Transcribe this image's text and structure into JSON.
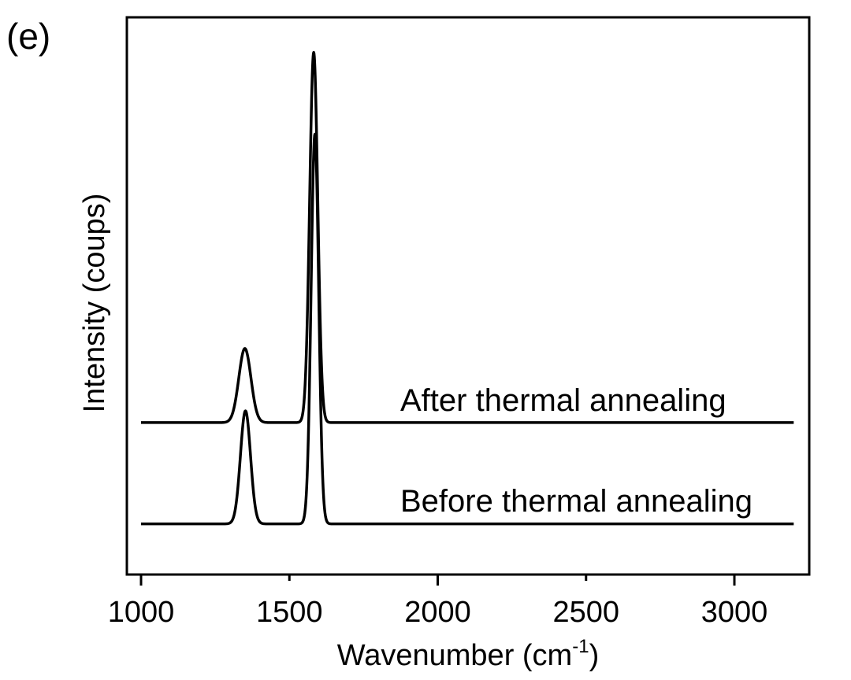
{
  "chart_data": {
    "type": "line",
    "panel_label": "(e)",
    "xlabel": "Wavenumber (cm",
    "xlabel_sup": "-1",
    "xlabel_close": ")",
    "ylabel": "Intensity (coups)",
    "xlim": [
      950,
      3250
    ],
    "ylim": [
      -0.13,
      1.3
    ],
    "xticks": [
      1000,
      1500,
      2000,
      2500,
      3000
    ],
    "xtick_labels": [
      "1000",
      "1500",
      "2000",
      "2500",
      "3000"
    ],
    "yticks": [],
    "grid": false,
    "legend": "none",
    "line_color": "#000000",
    "series": [
      {
        "name": "After thermal annealing",
        "offset": 0.26,
        "x_range": [
          1000,
          3200
        ],
        "peaks": [
          {
            "center": 1350,
            "height": 0.19,
            "fwhm": 48
          },
          {
            "center": 1582,
            "height": 0.95,
            "fwhm": 32
          }
        ]
      },
      {
        "name": "Before thermal annealing",
        "offset": 0,
        "x_range": [
          1000,
          3200
        ],
        "peaks": [
          {
            "center": 1352,
            "height": 0.29,
            "fwhm": 40
          },
          {
            "center": 1586,
            "height": 1.0,
            "fwhm": 30
          }
        ]
      }
    ]
  }
}
